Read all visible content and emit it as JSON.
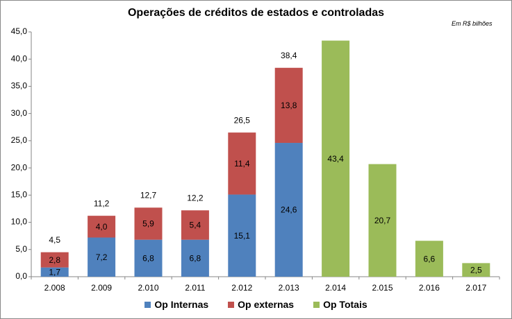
{
  "chart_data": {
    "type": "bar",
    "stacked": true,
    "title": "Operações de créditos de estados e controladas",
    "unit_note": "Em R$ bilhões",
    "categories": [
      "2.008",
      "2.009",
      "2.010",
      "2.011",
      "2.012",
      "2.013",
      "2.014",
      "2.015",
      "2.016",
      "2.017"
    ],
    "series": [
      {
        "name": "Op Internas",
        "color": "#4F81BD",
        "values": [
          1.7,
          7.2,
          6.8,
          6.8,
          15.1,
          24.6,
          null,
          null,
          null,
          null
        ],
        "labels": [
          "1,7",
          "7,2",
          "6,8",
          "6,8",
          "15,1",
          "24,6",
          "",
          "",
          "",
          ""
        ]
      },
      {
        "name": "Op externas",
        "color": "#C0504D",
        "values": [
          2.8,
          4.0,
          5.9,
          5.4,
          11.4,
          13.8,
          null,
          null,
          null,
          null
        ],
        "labels": [
          "2,8",
          "4,0",
          "5,9",
          "5,4",
          "11,4",
          "13,8",
          "",
          "",
          "",
          ""
        ]
      },
      {
        "name": "Op Totais",
        "color": "#9BBB59",
        "values": [
          null,
          null,
          null,
          null,
          null,
          null,
          43.4,
          20.7,
          6.6,
          2.5
        ],
        "labels": [
          "",
          "",
          "",
          "",
          "",
          "",
          "43,4",
          "20,7",
          "6,6",
          "2,5"
        ]
      }
    ],
    "totals": [
      4.5,
      11.2,
      12.7,
      12.2,
      26.5,
      38.4,
      null,
      null,
      null,
      null
    ],
    "total_labels": [
      "4,5",
      "11,2",
      "12,7",
      "12,2",
      "26,5",
      "38,4",
      "",
      "",
      "",
      ""
    ],
    "ylim": [
      0,
      45
    ],
    "y_ticks": [
      0,
      5,
      10,
      15,
      20,
      25,
      30,
      35,
      40,
      45
    ],
    "y_tick_labels": [
      "0,0",
      "5,0",
      "10,0",
      "15,0",
      "20,0",
      "25,0",
      "30,0",
      "35,0",
      "40,0",
      "45,0"
    ],
    "xlabel": "",
    "ylabel": "",
    "grid": false,
    "legend_position": "bottom"
  }
}
